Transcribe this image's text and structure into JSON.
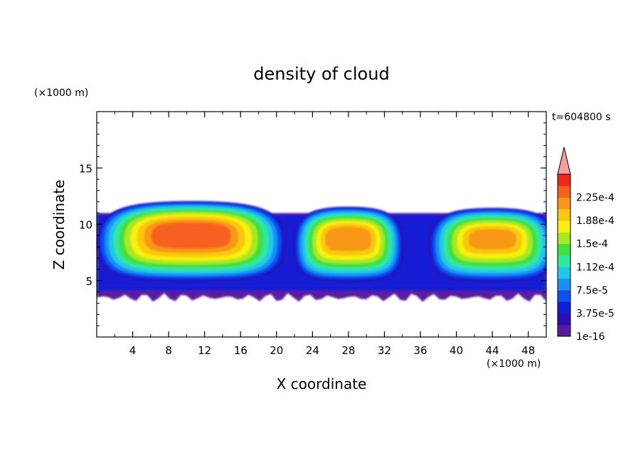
{
  "chart_data": {
    "type": "heatmap",
    "title": "density of cloud",
    "xlabel": "X coordinate",
    "ylabel": "Z coordinate",
    "x_unit": "(×1000 m)",
    "y_unit": "(×1000 m)",
    "time_label": "t=604800 s",
    "xlim": [
      0,
      50
    ],
    "ylim": [
      0,
      20
    ],
    "xticks": [
      4,
      8,
      12,
      16,
      20,
      24,
      28,
      32,
      36,
      40,
      44,
      48
    ],
    "yticks": [
      5,
      10,
      15
    ],
    "colorbar": {
      "levels_printed": [
        "2.25e-4",
        "1.88e-4",
        "1.5e-4",
        "1.12e-4",
        "7.5e-5",
        "3.75e-5",
        "1e-16"
      ],
      "level_values": [
        1e-16,
        1.875e-05,
        3.75e-05,
        5.625e-05,
        7.5e-05,
        9.375e-05,
        0.0001125,
        0.00013125,
        0.00015,
        0.00016875,
        0.0001875,
        0.00020625,
        0.000225,
        0.00024375
      ],
      "colors": [
        "#5a1aa0",
        "#2a10b0",
        "#1020d8",
        "#1050f0",
        "#1890f8",
        "#20c8e8",
        "#30e8a0",
        "#40e040",
        "#a8e820",
        "#f8f010",
        "#f8c810",
        "#f89818",
        "#f86020",
        "#f02818"
      ],
      "extend_color": "#f4a0a0"
    },
    "cloud_layer": {
      "z_base": 3.5,
      "z_top": 11
    },
    "cloud_cells": [
      {
        "x_start": 1,
        "x_end": 20,
        "z_base": 5,
        "z_top": 10.8,
        "peak_density": 0.00024
      },
      {
        "x_start": 23,
        "x_end": 33,
        "z_base": 5,
        "z_top": 10.3,
        "peak_density": 0.00022
      },
      {
        "x_start": 38,
        "x_end": 50,
        "z_base": 5,
        "z_top": 10.2,
        "peak_density": 0.00021
      }
    ]
  }
}
